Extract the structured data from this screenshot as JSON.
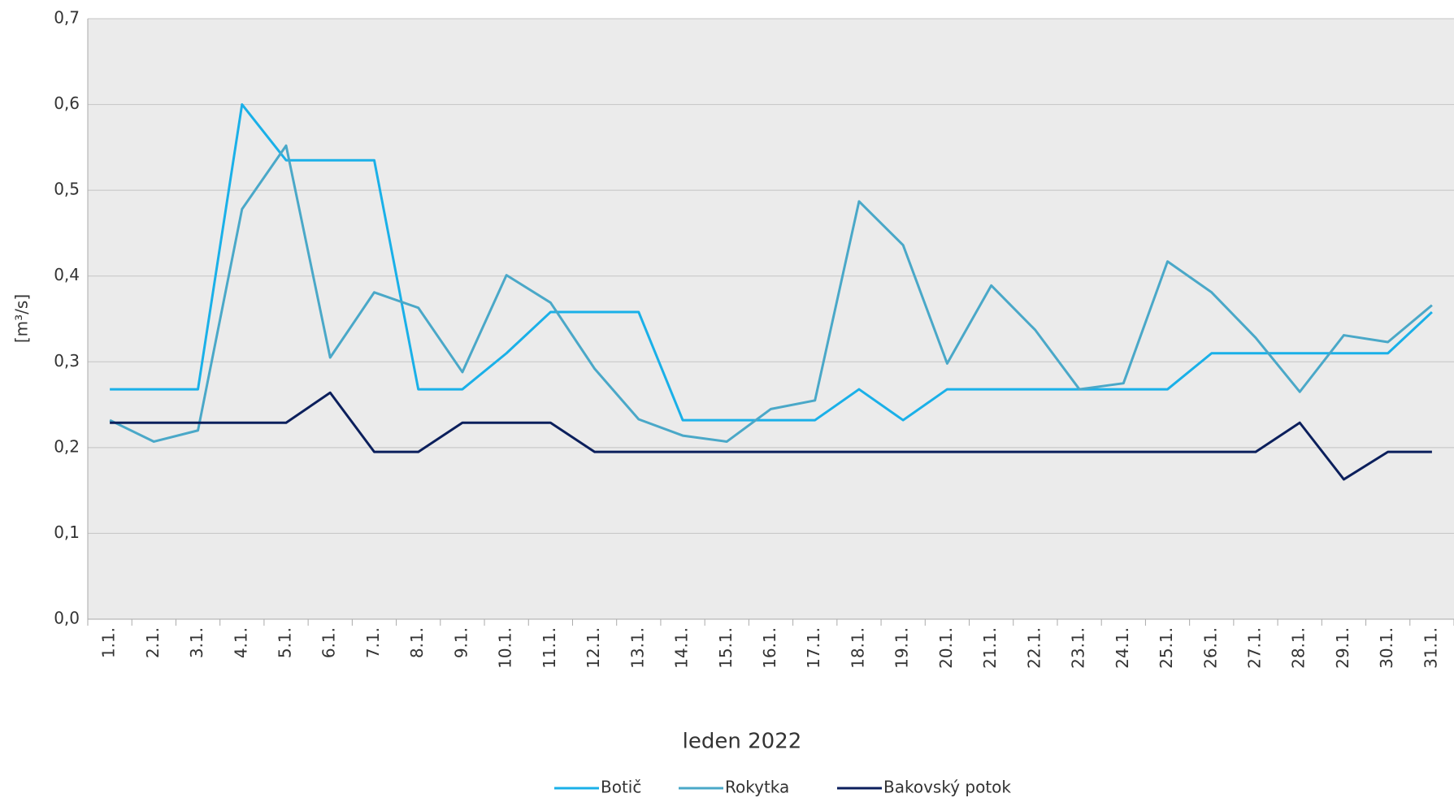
{
  "chart_data": {
    "type": "line",
    "x_label": "leden 2022",
    "y_label": "[m³/s]",
    "categories": [
      "1.1.",
      "2.1.",
      "3.1.",
      "4.1.",
      "5.1.",
      "6.1.",
      "7.1.",
      "8.1.",
      "9.1.",
      "10.1.",
      "11.1.",
      "12.1.",
      "13.1.",
      "14.1.",
      "15.1.",
      "16.1.",
      "17.1.",
      "18.1.",
      "19.1.",
      "20.1.",
      "21.1.",
      "22.1.",
      "23.1.",
      "24.1.",
      "25.1.",
      "26.1.",
      "27.1.",
      "28.1.",
      "29.1.",
      "30.1.",
      "31.1."
    ],
    "series": [
      {
        "name": "Botič",
        "color": "#1ab0e8",
        "values": [
          0.268,
          0.268,
          0.268,
          0.6,
          0.535,
          0.535,
          0.535,
          0.268,
          0.268,
          0.31,
          0.358,
          0.358,
          0.358,
          0.232,
          0.232,
          0.232,
          0.232,
          0.268,
          0.232,
          0.268,
          0.268,
          0.268,
          0.268,
          0.268,
          0.268,
          0.31,
          0.31,
          0.31,
          0.31,
          0.31,
          0.358
        ]
      },
      {
        "name": "Rokytka",
        "color": "#4aa8c8",
        "values": [
          0.232,
          0.207,
          0.22,
          0.478,
          0.552,
          0.305,
          0.381,
          0.363,
          0.288,
          0.401,
          0.369,
          0.292,
          0.233,
          0.214,
          0.207,
          0.245,
          0.255,
          0.487,
          0.436,
          0.298,
          0.389,
          0.337,
          0.268,
          0.275,
          0.417,
          0.381,
          0.328,
          0.265,
          0.331,
          0.323,
          0.366
        ]
      },
      {
        "name": "Bakovský potok",
        "color": "#0b1f5c",
        "values": [
          0.229,
          0.229,
          0.229,
          0.229,
          0.229,
          0.264,
          0.195,
          0.195,
          0.229,
          0.229,
          0.229,
          0.195,
          0.195,
          0.195,
          0.195,
          0.195,
          0.195,
          0.195,
          0.195,
          0.195,
          0.195,
          0.195,
          0.195,
          0.195,
          0.195,
          0.195,
          0.195,
          0.229,
          0.163,
          0.195,
          0.195
        ]
      }
    ],
    "ylim": [
      0,
      0.7
    ],
    "yticks": [
      {
        "value": 0,
        "label": "0,0"
      },
      {
        "value": 0.1,
        "label": "0,1"
      },
      {
        "value": 0.2,
        "label": "0,2"
      },
      {
        "value": 0.3,
        "label": "0,3"
      },
      {
        "value": 0.4,
        "label": "0,4"
      },
      {
        "value": 0.5,
        "label": "0,5"
      },
      {
        "value": 0.6,
        "label": "0,6"
      },
      {
        "value": 0.7,
        "label": "0,7"
      }
    ],
    "grid": true,
    "legend": "bottom"
  }
}
